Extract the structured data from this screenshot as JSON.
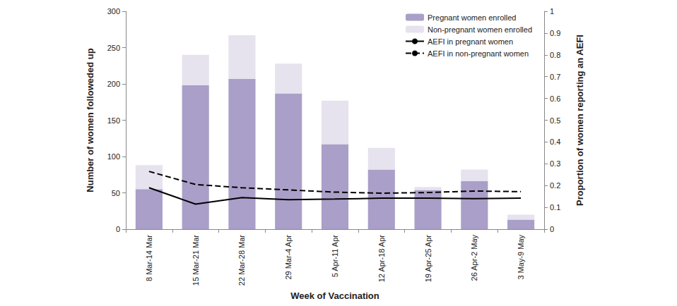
{
  "chart_data": {
    "type": "bar",
    "stacked": true,
    "grid": false,
    "legend": "upper right",
    "x_label": "Week of Vaccination",
    "y_label": "Number of women followeded up",
    "y2_label": "Proportion of women reporting an AEFI",
    "categories": [
      "8 Mar-14 Mar",
      "15 Mar-21 Mar",
      "22 Mar-28 Mar",
      "29 Mar-4 Apr",
      "5 Apr-11 Apr",
      "12 Apr-18 Apr",
      "19 Apr-25 Apr",
      "26 Apr-2 May",
      "3 May-9 May"
    ],
    "ylim": [
      0,
      300
    ],
    "yticks": [
      0,
      50,
      100,
      150,
      200,
      250,
      300
    ],
    "y2lim": [
      0,
      1
    ],
    "y2ticks": [
      0,
      0.1,
      0.2,
      0.3,
      0.4,
      0.5,
      0.6,
      0.7,
      0.8,
      0.9,
      1
    ],
    "series": [
      {
        "name": "Pregnant women enrolled",
        "type": "bar",
        "color": "#aa9fc8",
        "values": [
          55,
          198,
          207,
          187,
          117,
          82,
          54,
          66,
          13
        ]
      },
      {
        "name": "Non-pregnant women enrolled",
        "type": "bar",
        "color": "#e6e2ee",
        "values": [
          33,
          42,
          60,
          41,
          60,
          30,
          4,
          16,
          7
        ]
      },
      {
        "name": "AEFI in pregnant women",
        "type": "line",
        "axis": "y2",
        "color": "#000000",
        "line_style": "solid",
        "values": [
          0.19,
          0.115,
          0.145,
          0.135,
          0.138,
          0.142,
          0.142,
          0.14,
          0.142
        ]
      },
      {
        "name": "AEFI in non-pregnant women",
        "type": "line",
        "axis": "y2",
        "color": "#000000",
        "line_style": "dashed",
        "values": [
          0.265,
          0.205,
          0.19,
          0.18,
          0.17,
          0.165,
          0.168,
          0.175,
          0.172
        ]
      }
    ]
  }
}
